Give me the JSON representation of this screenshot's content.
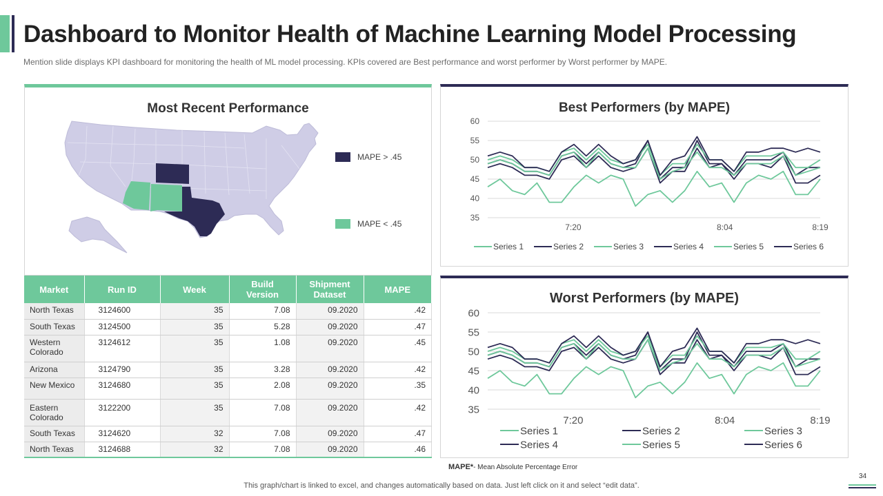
{
  "header": {
    "title": "Dashboard to Monitor Health of Machine Learning Model Processing",
    "subtitle": "Mention slide displays KPI dashboard for monitoring the health of ML model processing. KPIs covered are Best performance and worst performer by Worst performer by MAPE."
  },
  "map_panel": {
    "title": "Most Recent Performance",
    "legend": [
      {
        "label": "MAPE > .45",
        "color": "#2d2b55"
      },
      {
        "label": "MAPE < .45",
        "color": "#6ec89b"
      }
    ],
    "colors": {
      "base": "#cfcde6",
      "high": "#2d2b55",
      "low": "#6ec89b"
    }
  },
  "table": {
    "headers": [
      "Market",
      "Run ID",
      "Week",
      "Build Version",
      "Shipment Dataset",
      "MAPE"
    ],
    "rows": [
      [
        "North Texas",
        "3124600",
        "35",
        "7.08",
        "09.2020",
        ".42"
      ],
      [
        "South Texas",
        "3124500",
        "35",
        "5.28",
        "09.2020",
        ".47"
      ],
      [
        "Western Colorado",
        "3124612",
        "35",
        "1.08",
        "09.2020",
        ".45"
      ],
      [
        "Arizona",
        "3124790",
        "35",
        "3.28",
        "09.2020",
        ".42"
      ],
      [
        "New Mexico",
        "3124680",
        "35",
        "2.08",
        "09.2020",
        ".35"
      ],
      [
        "Eastern Colorado",
        "3122200",
        "35",
        "7.08",
        "09.2020",
        ".42"
      ],
      [
        "South Texas",
        "3124620",
        "32",
        "7.08",
        "09.2020",
        ".47"
      ],
      [
        "North Texas",
        "3124688",
        "32",
        "7.08",
        "09.2020",
        ".46"
      ]
    ]
  },
  "chart_data": [
    {
      "type": "line",
      "title": "Best Performers (by MAPE)",
      "ylim": [
        35,
        60
      ],
      "yticks": [
        35,
        40,
        45,
        50,
        55,
        60
      ],
      "xtick_labels": [
        "7:20",
        "8:04",
        "8:19"
      ],
      "grid": true,
      "legend_position": "bottom",
      "series": [
        {
          "name": "Series 1",
          "color": "#6ec89b",
          "values": [
            43,
            45,
            42,
            41,
            44,
            39,
            39,
            43,
            46,
            44,
            46,
            45,
            38,
            41,
            42,
            39,
            42,
            47,
            43,
            44,
            39,
            44,
            46,
            45,
            47,
            41,
            41,
            45
          ]
        },
        {
          "name": "Series 2",
          "color": "#2d2b55",
          "values": [
            49,
            50,
            49,
            47,
            47,
            46,
            51,
            52,
            49,
            52,
            49,
            48,
            49,
            55,
            45,
            48,
            48,
            55,
            49,
            49,
            46,
            50,
            50,
            50,
            52,
            46,
            48,
            48
          ]
        },
        {
          "name": "Series 3",
          "color": "#6ec89b",
          "values": [
            50,
            51,
            50,
            48,
            48,
            47,
            52,
            53,
            50,
            53,
            50,
            49,
            50,
            54,
            46,
            49,
            49,
            54,
            50,
            50,
            47,
            51,
            51,
            51,
            52,
            48,
            48,
            50
          ]
        },
        {
          "name": "Series 4",
          "color": "#2d2b55",
          "values": [
            48,
            49,
            48,
            46,
            46,
            45,
            50,
            51,
            48,
            51,
            48,
            47,
            48,
            53,
            44,
            47,
            47,
            53,
            48,
            49,
            45,
            49,
            49,
            48,
            51,
            44,
            44,
            46
          ]
        },
        {
          "name": "Series 5",
          "color": "#6ec89b",
          "values": [
            49,
            50,
            49,
            47,
            47,
            46,
            51,
            52,
            48,
            52,
            49,
            48,
            48,
            53,
            45,
            47,
            48,
            52,
            48,
            48,
            46,
            49,
            49,
            49,
            51,
            46,
            47,
            48
          ]
        },
        {
          "name": "Series 6",
          "color": "#2d2b55",
          "values": [
            51,
            52,
            51,
            48,
            48,
            47,
            52,
            54,
            51,
            54,
            51,
            49,
            50,
            55,
            46,
            50,
            51,
            56,
            50,
            50,
            47,
            52,
            52,
            53,
            53,
            52,
            53,
            52
          ]
        }
      ]
    },
    {
      "type": "line",
      "title": "Worst Performers (by MAPE)",
      "ylim": [
        35,
        60
      ],
      "yticks": [
        35,
        40,
        45,
        50,
        55,
        60
      ],
      "xtick_labels": [
        "7:20",
        "8:04",
        "8:19"
      ],
      "grid": true,
      "legend_position": "bottom",
      "series": [
        {
          "name": "Series 1",
          "color": "#6ec89b",
          "values": [
            43,
            45,
            42,
            41,
            44,
            39,
            39,
            43,
            46,
            44,
            46,
            45,
            38,
            41,
            42,
            39,
            42,
            47,
            43,
            44,
            39,
            44,
            46,
            45,
            47,
            41,
            41,
            45
          ]
        },
        {
          "name": "Series 2",
          "color": "#2d2b55",
          "values": [
            49,
            50,
            49,
            47,
            47,
            46,
            51,
            52,
            49,
            52,
            49,
            48,
            49,
            55,
            45,
            48,
            48,
            55,
            49,
            49,
            46,
            50,
            50,
            50,
            52,
            46,
            48,
            48
          ]
        },
        {
          "name": "Series 3",
          "color": "#6ec89b",
          "values": [
            50,
            51,
            50,
            48,
            48,
            47,
            52,
            53,
            50,
            53,
            50,
            49,
            50,
            54,
            46,
            49,
            49,
            54,
            50,
            50,
            47,
            51,
            51,
            51,
            52,
            48,
            48,
            50
          ]
        },
        {
          "name": "Series 4",
          "color": "#2d2b55",
          "values": [
            48,
            49,
            48,
            46,
            46,
            45,
            50,
            51,
            48,
            51,
            48,
            47,
            48,
            53,
            44,
            47,
            47,
            53,
            48,
            49,
            45,
            49,
            49,
            48,
            51,
            44,
            44,
            46
          ]
        },
        {
          "name": "Series 5",
          "color": "#6ec89b",
          "values": [
            49,
            50,
            49,
            47,
            47,
            46,
            51,
            52,
            48,
            52,
            49,
            48,
            48,
            53,
            45,
            47,
            48,
            52,
            48,
            48,
            46,
            49,
            49,
            49,
            51,
            46,
            47,
            48
          ]
        },
        {
          "name": "Series 6",
          "color": "#2d2b55",
          "values": [
            51,
            52,
            51,
            48,
            48,
            47,
            52,
            54,
            51,
            54,
            51,
            49,
            50,
            55,
            46,
            50,
            51,
            56,
            50,
            50,
            47,
            52,
            52,
            53,
            53,
            52,
            53,
            52
          ]
        }
      ]
    }
  ],
  "footnote": {
    "term": "MAPE*",
    "definition": "- Mean Absolute Percentage Error"
  },
  "bottom_note": "This graph/chart is linked to excel, and changes automatically based on data. Just left click on it and select “edit data”.",
  "page_number": "34"
}
